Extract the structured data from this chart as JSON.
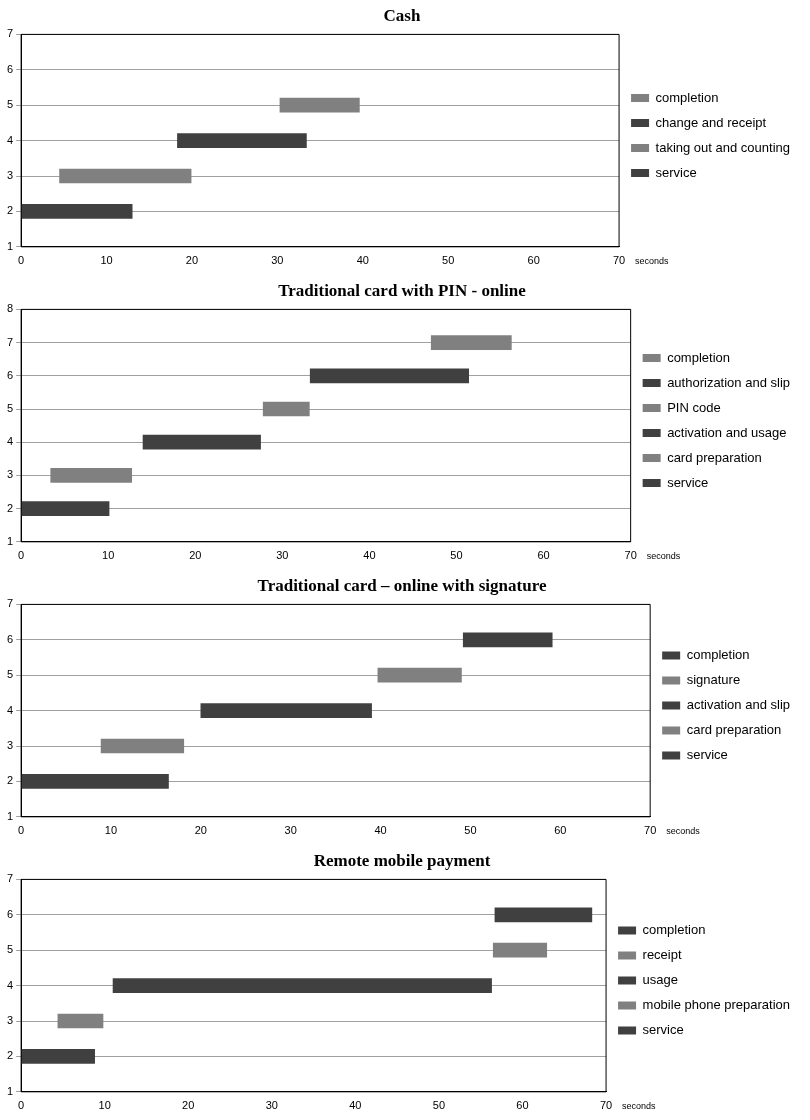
{
  "chart_data": [
    {
      "type": "bar",
      "orientation": "horizontal",
      "title": "Cash",
      "xlabel": "seconds",
      "categories": [
        "7",
        "6",
        "5",
        "4",
        "3",
        "2",
        "1"
      ],
      "xlim": [
        0,
        70
      ],
      "xticks": [
        0,
        10,
        20,
        30,
        40,
        50,
        60,
        70
      ],
      "grid": "y",
      "legend": "right",
      "series": [
        {
          "name": "completion",
          "color": "#808080",
          "values": [
            null,
            null,
            9.3,
            null,
            null,
            null,
            null
          ],
          "base": [
            null,
            null,
            30.3,
            null,
            null,
            null,
            null
          ]
        },
        {
          "name": "change and receipt",
          "color": "#404040",
          "values": [
            null,
            null,
            null,
            15.1,
            null,
            null,
            null
          ],
          "base": [
            null,
            null,
            null,
            18.3,
            null,
            null,
            null
          ]
        },
        {
          "name": "taking out and counting",
          "color": "#808080",
          "values": [
            null,
            null,
            null,
            null,
            15.4,
            null,
            null
          ],
          "base": [
            null,
            null,
            null,
            null,
            4.5,
            null,
            null
          ]
        },
        {
          "name": "service",
          "color": "#404040",
          "values": [
            null,
            null,
            null,
            null,
            null,
            13,
            null
          ],
          "base": [
            null,
            null,
            null,
            null,
            null,
            0,
            null
          ]
        }
      ]
    },
    {
      "type": "bar",
      "orientation": "horizontal",
      "title": "Traditional card with PIN - online",
      "xlabel": "seconds",
      "categories": [
        "8",
        "7",
        "6",
        "5",
        "4",
        "3",
        "2",
        "1"
      ],
      "xlim": [
        0,
        70
      ],
      "xticks": [
        0,
        10,
        20,
        30,
        40,
        50,
        60,
        70
      ],
      "grid": "y",
      "legend": "right",
      "series": [
        {
          "name": "completion",
          "color": "#808080",
          "values": [
            null,
            9.2,
            null,
            null,
            null,
            null,
            null,
            null
          ],
          "base": [
            null,
            47.1,
            null,
            null,
            null,
            null,
            null,
            null
          ]
        },
        {
          "name": "authorization and slip",
          "color": "#404040",
          "values": [
            null,
            null,
            18.2,
            null,
            null,
            null,
            null,
            null
          ],
          "base": [
            null,
            null,
            33.2,
            null,
            null,
            null,
            null,
            null
          ]
        },
        {
          "name": "PIN code",
          "color": "#808080",
          "values": [
            null,
            null,
            null,
            5.3,
            null,
            null,
            null,
            null
          ],
          "base": [
            null,
            null,
            null,
            27.8,
            null,
            null,
            null,
            null
          ]
        },
        {
          "name": "activation and usage",
          "color": "#404040",
          "values": [
            null,
            null,
            null,
            null,
            13.5,
            null,
            null,
            null
          ],
          "base": [
            null,
            null,
            null,
            null,
            14,
            null,
            null,
            null
          ]
        },
        {
          "name": "card preparation",
          "color": "#808080",
          "values": [
            null,
            null,
            null,
            null,
            null,
            9.3,
            null,
            null
          ],
          "base": [
            null,
            null,
            null,
            null,
            null,
            3.4,
            null,
            null
          ]
        },
        {
          "name": "service",
          "color": "#404040",
          "values": [
            null,
            null,
            null,
            null,
            null,
            null,
            10.1,
            null
          ],
          "base": [
            null,
            null,
            null,
            null,
            null,
            null,
            0,
            null
          ]
        }
      ]
    },
    {
      "type": "bar",
      "orientation": "horizontal",
      "title": "Traditional card – online with signature",
      "xlabel": "seconds",
      "categories": [
        "7",
        "6",
        "5",
        "4",
        "3",
        "2",
        "1"
      ],
      "xlim": [
        0,
        70
      ],
      "xticks": [
        0,
        10,
        20,
        30,
        40,
        50,
        60,
        70
      ],
      "grid": "y",
      "legend": "right",
      "series": [
        {
          "name": "completion",
          "color": "#404040",
          "values": [
            null,
            9.9,
            null,
            null,
            null,
            null,
            null
          ],
          "base": [
            null,
            49.2,
            null,
            null,
            null,
            null,
            null
          ]
        },
        {
          "name": "signature",
          "color": "#808080",
          "values": [
            null,
            null,
            9.3,
            null,
            null,
            null,
            null
          ],
          "base": [
            null,
            null,
            39.7,
            null,
            null,
            null,
            null
          ]
        },
        {
          "name": "activation and slip",
          "color": "#404040",
          "values": [
            null,
            null,
            null,
            19,
            null,
            null,
            null
          ],
          "base": [
            null,
            null,
            null,
            20,
            null,
            null,
            null
          ]
        },
        {
          "name": "card preparation",
          "color": "#808080",
          "values": [
            null,
            null,
            null,
            null,
            9.2,
            null,
            null
          ],
          "base": [
            null,
            null,
            null,
            null,
            8.9,
            null,
            null
          ]
        },
        {
          "name": "service",
          "color": "#404040",
          "values": [
            null,
            null,
            null,
            null,
            null,
            16.4,
            null
          ],
          "base": [
            null,
            null,
            null,
            null,
            null,
            0,
            null
          ]
        }
      ]
    },
    {
      "type": "bar",
      "orientation": "horizontal",
      "title": "Remote mobile payment",
      "xlabel": "seconds",
      "categories": [
        "7",
        "6",
        "5",
        "4",
        "3",
        "2",
        "1"
      ],
      "xlim": [
        0,
        70
      ],
      "xticks": [
        0,
        10,
        20,
        30,
        40,
        50,
        60,
        70
      ],
      "grid": "y",
      "legend": "right",
      "series": [
        {
          "name": "completion",
          "color": "#404040",
          "values": [
            null,
            11.6,
            null,
            null,
            null,
            null,
            null
          ],
          "base": [
            null,
            56.7,
            null,
            null,
            null,
            null,
            null
          ]
        },
        {
          "name": "receipt",
          "color": "#808080",
          "values": [
            null,
            null,
            6.4,
            null,
            null,
            null,
            null
          ],
          "base": [
            null,
            null,
            56.5,
            null,
            null,
            null,
            null
          ]
        },
        {
          "name": "usage",
          "color": "#404040",
          "values": [
            null,
            null,
            null,
            45.3,
            null,
            null,
            null
          ],
          "base": [
            null,
            null,
            null,
            11,
            null,
            null,
            null
          ]
        },
        {
          "name": "mobile phone preparation",
          "color": "#808080",
          "values": [
            null,
            null,
            null,
            null,
            5.4,
            null,
            null
          ],
          "base": [
            null,
            null,
            null,
            null,
            4.4,
            null,
            null
          ]
        },
        {
          "name": "service",
          "color": "#404040",
          "values": [
            null,
            null,
            null,
            null,
            null,
            8.8,
            null
          ],
          "base": [
            null,
            null,
            null,
            null,
            null,
            0,
            null
          ]
        }
      ]
    }
  ]
}
